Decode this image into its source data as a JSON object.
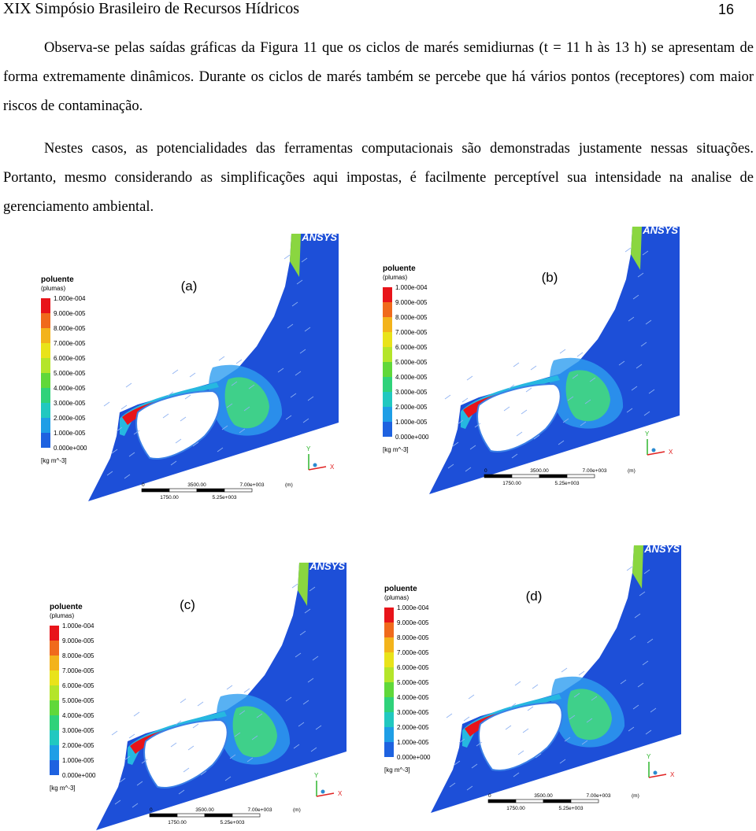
{
  "header": {
    "title": "XIX Simpósio Brasileiro de Recursos Hídricos",
    "page": "16"
  },
  "paragraphs": [
    "Observa-se pelas saídas gráficas da Figura 11 que os ciclos de marés semidiurnas (t = 11 h às 13 h) se apresentam de forma extremamente dinâmicos. Durante os ciclos de marés também se percebe que há vários pontos (receptores) com maior riscos de contaminação.",
    "Nestes casos, as potencialidades das ferramentas computacionais são demonstradas justamente nessas situações. Portanto, mesmo considerando as simplificações aqui impostas, é facilmente perceptível sua intensidade na analise de gerenciamento ambiental."
  ],
  "figure": {
    "panels": [
      {
        "label": "(a)",
        "logo": "ANSYS",
        "legend": {
          "title": "poluente",
          "subtitle": "(plumas)",
          "labels": [
            "1.000e-004",
            "9.000e-005",
            "8.000e-005",
            "7.000e-005",
            "6.000e-005",
            "5.000e-005",
            "4.000e-005",
            "3.000e-005",
            "2.000e-005",
            "1.000e-005",
            "0.000e+000"
          ],
          "unit": "[kg m^-3]"
        },
        "scale": {
          "top": [
            "0",
            "3500.00",
            "7.00e+003"
          ],
          "unit": "(m)",
          "bottom": [
            "1750.00",
            "5.25e+003"
          ]
        },
        "axes": {
          "y": "Y",
          "x": "X"
        }
      },
      {
        "label": "(b)",
        "logo": "ANSYS",
        "legend": {
          "title": "poluente",
          "subtitle": "(plumas)",
          "labels": [
            "1.000e-004",
            "9.000e-005",
            "8.000e-005",
            "7.000e-005",
            "6.000e-005",
            "5.000e-005",
            "4.000e-005",
            "3.000e-005",
            "2.000e-005",
            "1.000e-005",
            "0.000e+000"
          ],
          "unit": "[kg m^-3]"
        },
        "scale": {
          "top": [
            "0",
            "3500.00",
            "7.00e+003"
          ],
          "unit": "(m)",
          "bottom": [
            "1750.00",
            "5.25e+003"
          ]
        },
        "axes": {
          "y": "Y",
          "x": "X"
        }
      },
      {
        "label": "(c)",
        "logo": "ANSYS",
        "legend": {
          "title": "poluente",
          "subtitle": "(plumas)",
          "labels": [
            "1.000e-004",
            "9.000e-005",
            "8.000e-005",
            "7.000e-005",
            "6.000e-005",
            "5.000e-005",
            "4.000e-005",
            "3.000e-005",
            "2.000e-005",
            "1.000e-005",
            "0.000e+000"
          ],
          "unit": "[kg m^-3]"
        },
        "scale": {
          "top": [
            "0",
            "3500.00",
            "7.00e+003"
          ],
          "unit": "(m)",
          "bottom": [
            "1750.00",
            "5.25e+003"
          ]
        },
        "axes": {
          "y": "Y",
          "x": "X"
        }
      },
      {
        "label": "(d)",
        "logo": "ANSYS",
        "legend": {
          "title": "poluente",
          "subtitle": "(plumas)",
          "labels": [
            "1.000e-004",
            "9.000e-005",
            "8.000e-005",
            "7.000e-005",
            "6.000e-005",
            "5.000e-005",
            "4.000e-005",
            "3.000e-005",
            "2.000e-005",
            "1.000e-005",
            "0.000e+000"
          ],
          "unit": "[kg m^-3]"
        },
        "scale": {
          "top": [
            "0",
            "3500.00",
            "7.00e+003"
          ],
          "unit": "(m)",
          "bottom": [
            "1750.00",
            "5.25e+003"
          ]
        },
        "axes": {
          "y": "Y",
          "x": "X"
        }
      }
    ]
  }
}
